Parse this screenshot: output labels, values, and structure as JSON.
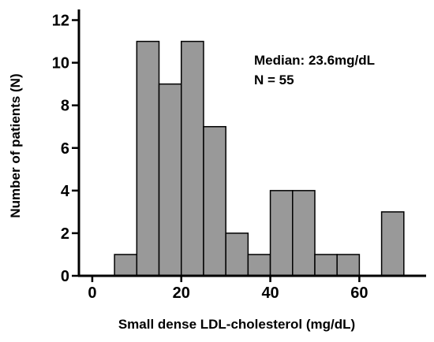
{
  "chart_data": {
    "type": "bar",
    "subtype": "histogram",
    "bin_width": 5,
    "bin_starts": [
      5,
      10,
      15,
      20,
      25,
      30,
      35,
      40,
      45,
      50,
      55,
      65
    ],
    "values": [
      1,
      11,
      9,
      11,
      7,
      2,
      1,
      4,
      4,
      1,
      1,
      3
    ],
    "xlabel": "Small dense LDL-cholesterol (mg/dL)",
    "ylabel": "Number of patients (N)",
    "xlim": [
      -3,
      75
    ],
    "ylim": [
      0,
      12.5
    ],
    "xticks": [
      0,
      20,
      40,
      60
    ],
    "yticks": [
      0,
      2,
      4,
      6,
      8,
      10,
      12
    ],
    "annotations": [
      "Median: 23.6mg/dL",
      "N = 55"
    ],
    "bar_color": "#999999",
    "bar_edge_color": "#000000",
    "grid": false
  }
}
